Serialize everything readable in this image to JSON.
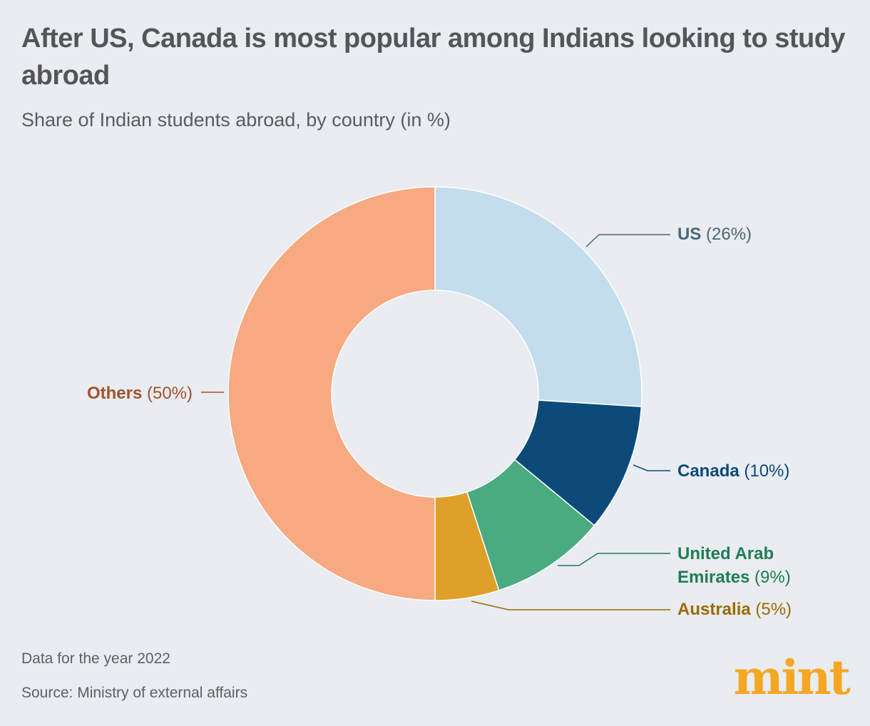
{
  "title": "After US, Canada is most popular among Indians looking to study abroad",
  "subtitle": "Share of Indian students abroad, by country (in %)",
  "note": "Data for the year 2022",
  "source": "Source: Ministry of external affairs",
  "brand": "mint",
  "chart_data": {
    "type": "pie",
    "variant": "donut",
    "title": "After US, Canada is most popular among Indians looking to study abroad",
    "subtitle": "Share of Indian students abroad, by country (in %)",
    "unit": "%",
    "slices": [
      {
        "label": "US",
        "label_lines": [
          "US"
        ],
        "value": 26,
        "value_text": "(26%)",
        "color": "#c3ddee",
        "text_color": "#4d6779"
      },
      {
        "label": "Canada",
        "label_lines": [
          "Canada"
        ],
        "value": 10,
        "value_text": "(10%)",
        "color": "#0c4a7a",
        "text_color": "#0c4a7a"
      },
      {
        "label": "United Arab Emirates",
        "label_lines": [
          "United Arab",
          "Emirates"
        ],
        "value": 9,
        "value_text": "(9%)",
        "color": "#4aab80",
        "text_color": "#1e7d56"
      },
      {
        "label": "Australia",
        "label_lines": [
          "Australia"
        ],
        "value": 5,
        "value_text": "(5%)",
        "color": "#dea028",
        "text_color": "#9a6a05"
      },
      {
        "label": "Others",
        "label_lines": [
          "Others"
        ],
        "value": 50,
        "value_text": "(50%)",
        "color": "#f7a982",
        "text_color": "#a0522d"
      }
    ],
    "background": "#e9ecf0",
    "brand_color": "#f5a623"
  }
}
